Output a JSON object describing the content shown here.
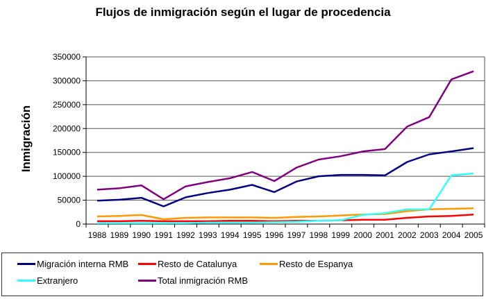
{
  "chart_data": {
    "type": "line",
    "title": "Flujos de inmigración según el lugar de procedencia",
    "xlabel": "",
    "ylabel": "Inmigración",
    "ylim": [
      0,
      350000
    ],
    "yticks": [
      "0",
      "50000",
      "100000",
      "150000",
      "200000",
      "250000",
      "300000",
      "350000"
    ],
    "ytick_values": [
      0,
      50000,
      100000,
      150000,
      200000,
      250000,
      300000,
      350000
    ],
    "grid": true,
    "legend_position": "bottom",
    "categories": [
      "1988",
      "1989",
      "1990",
      "1991",
      "1992",
      "1993",
      "1994",
      "1995",
      "1996",
      "1997",
      "1998",
      "1999",
      "2000",
      "2001",
      "2002",
      "2003",
      "2004",
      "2005"
    ],
    "series": [
      {
        "name": "Migración interna RMB",
        "color": "#000080",
        "values": [
          49000,
          51000,
          55000,
          37000,
          56000,
          65000,
          72000,
          82000,
          67000,
          89000,
          100000,
          103000,
          103000,
          102000,
          130000,
          146000,
          152000,
          159000
        ]
      },
      {
        "name": "Resto de Catalunya",
        "color": "#ff0000",
        "values": [
          6000,
          6000,
          7000,
          6000,
          6000,
          6000,
          7000,
          7000,
          6000,
          7000,
          7000,
          8000,
          9000,
          9000,
          13000,
          16000,
          17000,
          20000
        ]
      },
      {
        "name": "Resto de Espanya",
        "color": "#ff9900",
        "values": [
          16000,
          17000,
          19000,
          10000,
          13000,
          14000,
          14000,
          14000,
          13000,
          15000,
          16000,
          18000,
          20000,
          21000,
          27000,
          31000,
          32000,
          33000
        ]
      },
      {
        "name": "Extranjero",
        "color": "#33ffff",
        "values": [
          2000,
          2000,
          2000,
          2000,
          2000,
          3000,
          3000,
          3000,
          4000,
          5000,
          7000,
          8000,
          19000,
          23000,
          31000,
          31000,
          102000,
          106000
        ]
      },
      {
        "name": "Total inmigración RMB",
        "color": "#800080",
        "values": [
          72000,
          75000,
          81000,
          52000,
          79000,
          88000,
          96000,
          109000,
          90000,
          118000,
          135000,
          142000,
          152000,
          157000,
          204000,
          224000,
          303000,
          320000
        ]
      }
    ]
  }
}
